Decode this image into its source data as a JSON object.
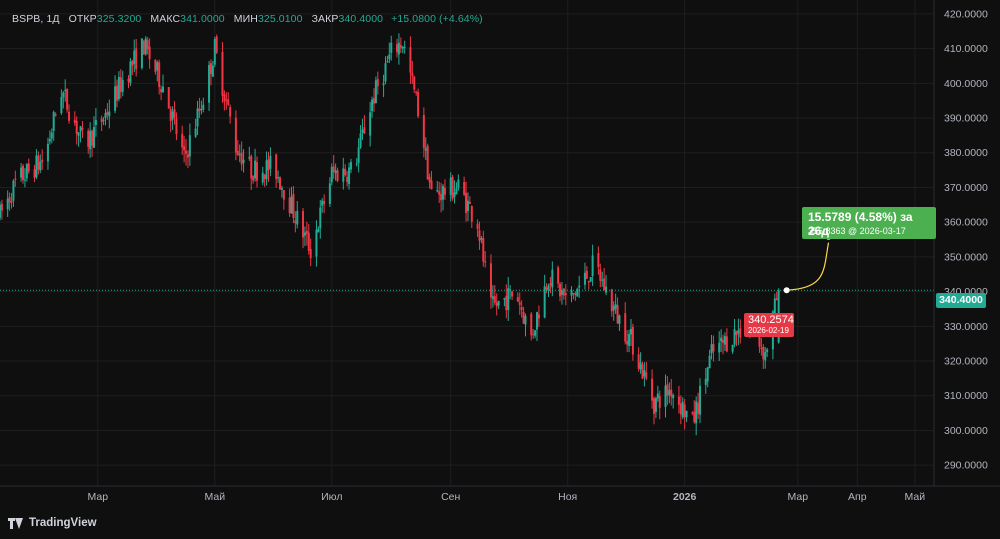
{
  "legend": {
    "symbol": "BSPB",
    "interval": "1Д",
    "open_label": "ОТКР",
    "open_value": "325.3200",
    "high_label": "МАКС",
    "high_value": "341.0000",
    "low_label": "МИН",
    "low_value": "325.0100",
    "close_label": "ЗАКР",
    "close_value": "340.4000",
    "change": "+15.0800 (+4.64%)"
  },
  "brand": {
    "name": "TradingView"
  },
  "projection": {
    "headline": "15.5789 (4.58%) за 26д",
    "detail": "355.8363 @ 2026-03-17",
    "start_value": 340.2574,
    "start_date": "2026-02-19",
    "start_value_label": "340.2574",
    "start_date_label": "2026-02-19",
    "target_value": 355.8363,
    "target_date": "2026-03-17"
  },
  "last_price_label": "340.4000",
  "colors": {
    "up": "#22ab94",
    "down": "#f23645",
    "background": "#0f0f0f",
    "grid": "#1e1e1e",
    "projection_up": "#4caf50",
    "projection_start": "#e63946",
    "arrow": "#ffd54a"
  },
  "chart_data": {
    "type": "candlestick",
    "ylim": [
      284,
      424
    ],
    "y_ticks": [
      290,
      300,
      310,
      320,
      330,
      340,
      350,
      360,
      370,
      380,
      390,
      400,
      410,
      420
    ],
    "y_tick_labels": [
      "290.0000",
      "300.0000",
      "310.0000",
      "320.0000",
      "330.0000",
      "340.0000",
      "350.0000",
      "360.0000",
      "370.0000",
      "380.0000",
      "390.0000",
      "400.0000",
      "410.0000",
      "420.0000"
    ],
    "x_range": [
      "2025-01-09",
      "2026-05-11"
    ],
    "x_ticks": [
      {
        "date": "2025-03-01",
        "label": "Мар",
        "bold": false
      },
      {
        "date": "2025-05-01",
        "label": "Май",
        "bold": false
      },
      {
        "date": "2025-07-01",
        "label": "Июл",
        "bold": false
      },
      {
        "date": "2025-09-01",
        "label": "Сен",
        "bold": false
      },
      {
        "date": "2025-11-01",
        "label": "Ноя",
        "bold": false
      },
      {
        "date": "2026-01-01",
        "label": "2026",
        "bold": true
      },
      {
        "date": "2026-03-01",
        "label": "Мар",
        "bold": false
      },
      {
        "date": "2026-04-01",
        "label": "Апр",
        "bold": false
      },
      {
        "date": "2026-05-01",
        "label": "Май",
        "bold": false
      }
    ],
    "last_price": 340.4,
    "close_path": [
      [
        "2025-01-09",
        362
      ],
      [
        "2025-01-18",
        372
      ],
      [
        "2025-02-01",
        378
      ],
      [
        "2025-02-10",
        398
      ],
      [
        "2025-02-22",
        382
      ],
      [
        "2025-03-05",
        391
      ],
      [
        "2025-03-15",
        402
      ],
      [
        "2025-03-25",
        411
      ],
      [
        "2025-04-05",
        398
      ],
      [
        "2025-04-15",
        378
      ],
      [
        "2025-04-25",
        396
      ],
      [
        "2025-05-01",
        410
      ],
      [
        "2025-05-12",
        382
      ],
      [
        "2025-05-20",
        375
      ],
      [
        "2025-06-01",
        376
      ],
      [
        "2025-06-12",
        362
      ],
      [
        "2025-06-20",
        352
      ],
      [
        "2025-07-01",
        374
      ],
      [
        "2025-07-12",
        375
      ],
      [
        "2025-07-22",
        395
      ],
      [
        "2025-08-02",
        410
      ],
      [
        "2025-08-07",
        412
      ],
      [
        "2025-08-16",
        390
      ],
      [
        "2025-08-22",
        368
      ],
      [
        "2025-09-05",
        370
      ],
      [
        "2025-09-15",
        360
      ],
      [
        "2025-09-22",
        335
      ],
      [
        "2025-10-05",
        340
      ],
      [
        "2025-10-13",
        327
      ],
      [
        "2025-10-22",
        345
      ],
      [
        "2025-11-01",
        337
      ],
      [
        "2025-11-08",
        342
      ],
      [
        "2025-11-15",
        348
      ],
      [
        "2025-11-25",
        335
      ],
      [
        "2025-12-05",
        325
      ],
      [
        "2025-12-16",
        308
      ],
      [
        "2025-12-25",
        312
      ],
      [
        "2026-01-05",
        302
      ],
      [
        "2026-01-15",
        322
      ],
      [
        "2026-01-25",
        327
      ],
      [
        "2026-02-04",
        331
      ],
      [
        "2026-02-12",
        322
      ],
      [
        "2026-02-19",
        340.4
      ]
    ]
  }
}
